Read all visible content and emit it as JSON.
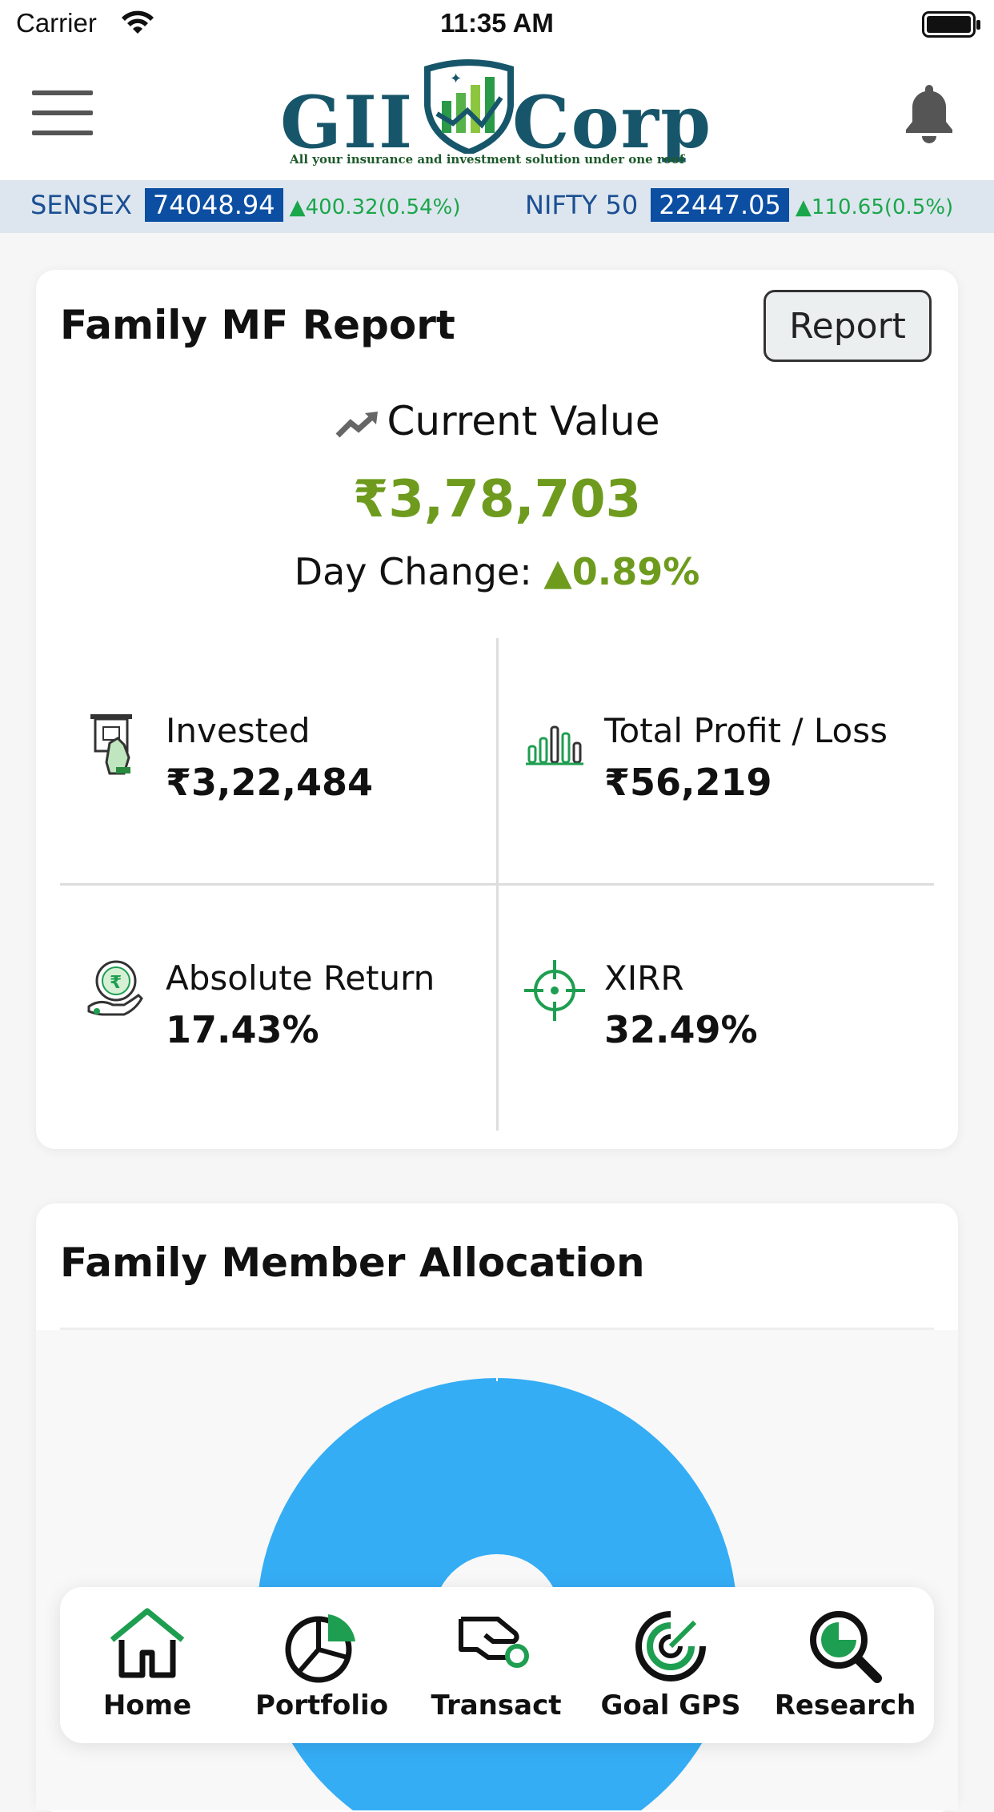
{
  "status_bar": {
    "carrier": "Carrier",
    "time": "11:35 AM"
  },
  "header": {
    "logo_left": "GII",
    "logo_right": "Corp",
    "tagline": "All your insurance and investment solution under one roof"
  },
  "ticker": [
    {
      "name": "SENSEX",
      "value": "74048.94",
      "change": "▲400.32(0.54%)"
    },
    {
      "name": "NIFTY 50",
      "value": "22447.05",
      "change": "▲110.65(0.5%)"
    }
  ],
  "report_card": {
    "title": "Family MF Report",
    "button_label": "Report",
    "current_value_label": "Current Value",
    "current_value": "₹3,78,703",
    "day_change_label": "Day Change:",
    "day_change_value": "▲0.89%",
    "stats": [
      {
        "label": "Invested",
        "value": "₹3,22,484",
        "icon": "atm-cash-icon"
      },
      {
        "label": "Total Profit / Loss",
        "value": "₹56,219",
        "icon": "bar-chart-icon"
      },
      {
        "label": "Absolute Return",
        "value": "17.43%",
        "icon": "rupee-coin-hand-icon"
      },
      {
        "label": "XIRR",
        "value": "32.49%",
        "icon": "target-icon"
      }
    ]
  },
  "allocation_card": {
    "title": "Family Member Allocation"
  },
  "chart_data": {
    "type": "pie",
    "variant": "donut",
    "series": [
      {
        "values": [
          100
        ]
      }
    ],
    "colors": [
      "#35adf5"
    ]
  },
  "bottom_nav": [
    {
      "label": "Home",
      "icon": "home-icon",
      "active": true
    },
    {
      "label": "Portfolio",
      "icon": "pie-chart-icon"
    },
    {
      "label": "Transact",
      "icon": "hand-coin-icon"
    },
    {
      "label": "Goal GPS",
      "icon": "gauge-icon"
    },
    {
      "label": "Research",
      "icon": "magnifier-chart-icon"
    }
  ],
  "colors": {
    "accent_green": "#6e9b1e",
    "ticker_blue": "#0b4ea2",
    "ticker_up": "#1aa64a",
    "nav_green": "#1e9e50",
    "donut_blue": "#35adf5"
  }
}
